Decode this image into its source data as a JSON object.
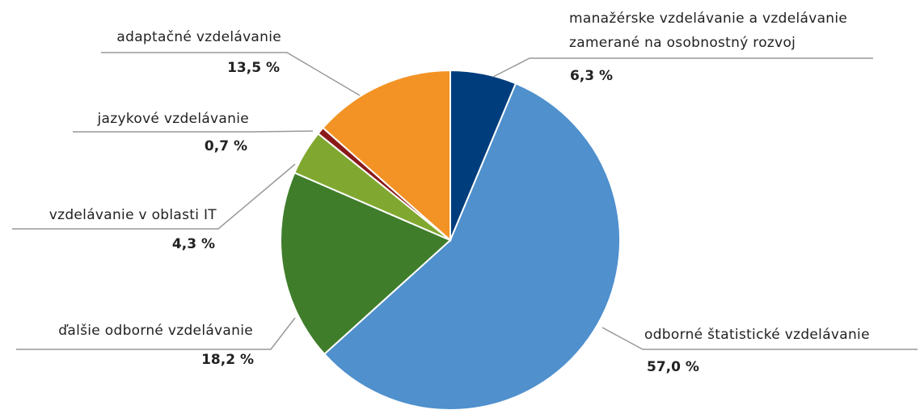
{
  "chart_data": {
    "type": "pie",
    "categories": [
      "manažérske vzdelávanie a vzdelávanie zamerané na osobnostný rozvoj",
      "odborné štatistické vzdelávanie",
      "ďalšie odborné vzdelávanie",
      "vzdelávanie v oblasti IT",
      "jazykové vzdelávanie",
      "adaptačné vzdelávanie"
    ],
    "values": [
      6.3,
      57.0,
      18.2,
      4.3,
      0.7,
      13.5
    ],
    "value_labels": [
      "6,3 %",
      "57,0 %",
      "18,2 %",
      "4,3 %",
      "0,7 %",
      "13,5 %"
    ],
    "colors": [
      "#003d7c",
      "#4f90cd",
      "#3f7d2b",
      "#80a830",
      "#8b1a1a",
      "#f39325"
    ]
  }
}
